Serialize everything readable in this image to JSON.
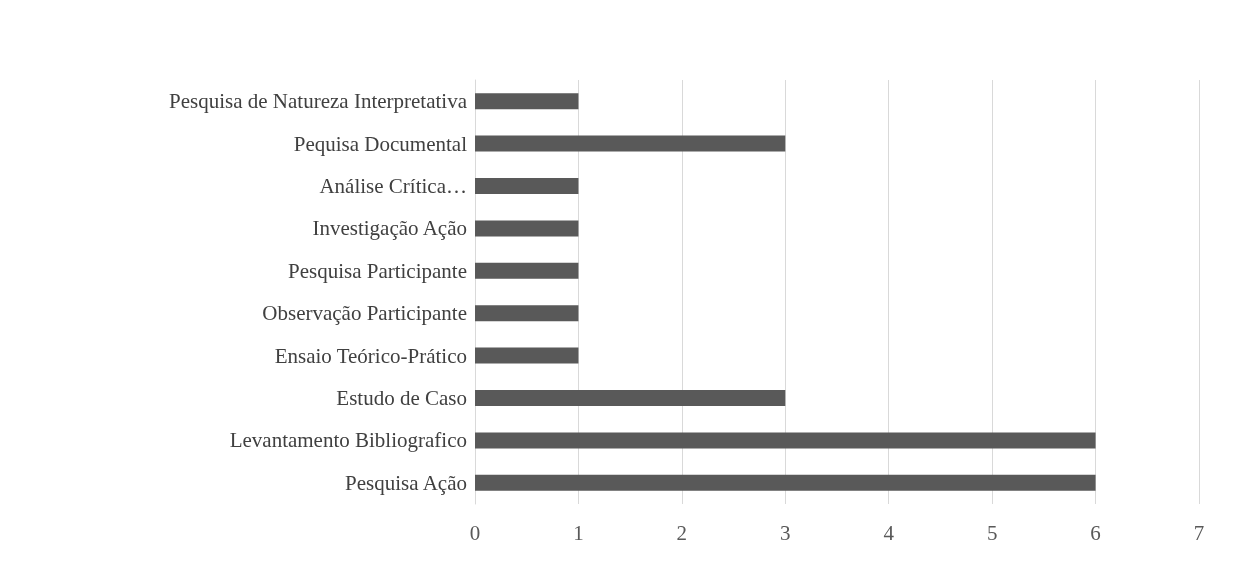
{
  "chart_data": {
    "type": "bar",
    "orientation": "horizontal",
    "categories": [
      "Pesquisa de Natureza Interpretativa",
      "Pequisa Documental",
      "Análise Crítica…",
      "Investigação Ação",
      "Pesquisa Participante",
      "Observação Participante",
      "Ensaio Teórico-Prático",
      "Estudo de Caso",
      "Levantamento Bibliografico",
      "Pesquisa Ação"
    ],
    "values": [
      1,
      3,
      1,
      1,
      1,
      1,
      1,
      3,
      6,
      6
    ],
    "color": "#595959",
    "xlim": [
      0,
      7
    ],
    "xticks": [
      0,
      1,
      2,
      3,
      4,
      5,
      6,
      7
    ],
    "grid": "x"
  }
}
